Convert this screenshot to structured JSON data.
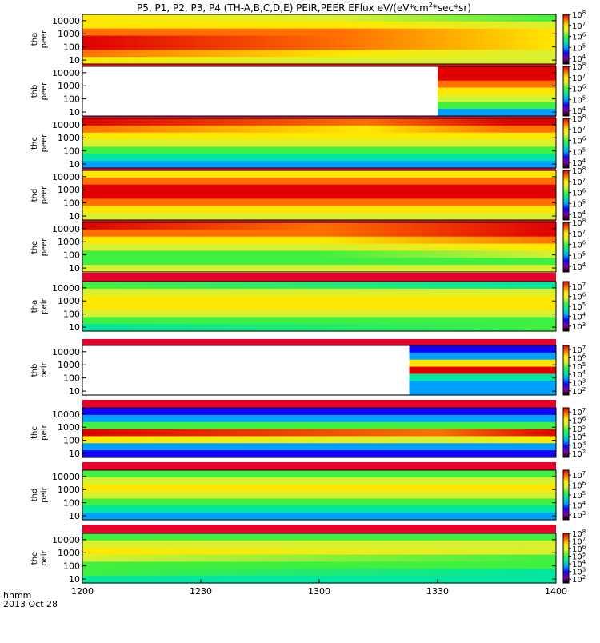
{
  "title": "P5, P1, P2, P3, P4 (TH-A,B,C,D,E) PEIR,PEER EFlux eV/(eV*cm",
  "title_sup": "2",
  "title_end": "*sec*sr)",
  "time_label": "hhmm",
  "date_label": "2013 Oct 28",
  "colors": {
    "palette": [
      "#000000",
      "#8a00a0",
      "#1400ff",
      "#00a0ff",
      "#00e6a0",
      "#40f040",
      "#d8f030",
      "#ffe800",
      "#ff7000",
      "#e00000"
    ],
    "data_gap": "#ffffff",
    "separator": "#e8002a"
  },
  "chart_data": {
    "type": "heatmap",
    "x_ticks": [
      "1200",
      "1230",
      "1300",
      "1330",
      "1400"
    ],
    "x_range_hhmm": [
      "1200",
      "1400"
    ],
    "y_scale": "log",
    "y_tick_labels": [
      "10",
      "100",
      "1000",
      "10000"
    ],
    "panels": [
      {
        "probe": "tha",
        "species": "peer",
        "ylim": [
          5,
          30000
        ],
        "cbar": {
          "min": 3.5,
          "max": 8,
          "ticks": [
            "10",
            "10",
            "10",
            "10",
            "10"
          ],
          "exps": [
            "4",
            "5",
            "6",
            "7",
            "8"
          ]
        },
        "gaps": [],
        "bands": [
          {
            "t": 0.0,
            "lvls": [
              7,
              8,
              9,
              9,
              8,
              7,
              7
            ]
          },
          {
            "t": 0.55,
            "lvls": [
              6,
              7,
              8,
              8,
              8,
              7,
              6
            ]
          },
          {
            "t": 1.0,
            "lvls": [
              6,
              6,
              7,
              7,
              7,
              6,
              5
            ]
          }
        ]
      },
      {
        "probe": "thb",
        "species": "peer",
        "ylim": [
          5,
          30000
        ],
        "cbar": {
          "min": 3.5,
          "max": 8,
          "ticks": [
            "10",
            "10",
            "10",
            "10",
            "10"
          ],
          "exps": [
            "4",
            "5",
            "6",
            "7",
            "8"
          ]
        },
        "gaps": [
          [
            0.0,
            0.75
          ]
        ],
        "bands": [
          {
            "t": 0.75,
            "lvls": [
              3,
              5,
              6,
              7,
              8,
              9,
              9
            ]
          },
          {
            "t": 1.0,
            "lvls": [
              3,
              5,
              6,
              7,
              8,
              9,
              9
            ]
          }
        ]
      },
      {
        "probe": "thc",
        "species": "peer",
        "ylim": [
          5,
          30000
        ],
        "cbar": {
          "min": 3.5,
          "max": 8,
          "ticks": [
            "10",
            "10",
            "10",
            "10",
            "10"
          ],
          "exps": [
            "4",
            "5",
            "6",
            "7",
            "8"
          ]
        },
        "gaps": [],
        "bands": [
          {
            "t": 0.0,
            "lvls": [
              3,
              4,
              5,
              6,
              7,
              8,
              9
            ]
          },
          {
            "t": 0.6,
            "lvls": [
              3,
              4,
              5,
              6,
              7,
              7,
              8
            ]
          },
          {
            "t": 0.9,
            "lvls": [
              3,
              4,
              5,
              6,
              7,
              8,
              9
            ]
          },
          {
            "t": 1.0,
            "lvls": [
              3,
              4,
              5,
              6,
              7,
              8,
              9
            ]
          }
        ]
      },
      {
        "probe": "thd",
        "species": "peer",
        "ylim": [
          5,
          30000
        ],
        "cbar": {
          "min": 3.5,
          "max": 8,
          "ticks": [
            "10",
            "10",
            "10",
            "10",
            "10"
          ],
          "exps": [
            "4",
            "5",
            "6",
            "7",
            "8"
          ]
        },
        "gaps": [],
        "bands": [
          {
            "t": 0.0,
            "lvls": [
              6,
              7,
              8,
              9,
              9,
              8,
              7
            ]
          },
          {
            "t": 1.0,
            "lvls": [
              6,
              7,
              8,
              9,
              9,
              8,
              7
            ]
          }
        ]
      },
      {
        "probe": "the",
        "species": "peer",
        "ylim": [
          5,
          30000
        ],
        "cbar": {
          "min": 3.5,
          "max": 8,
          "ticks": [
            "10",
            "10",
            "10",
            "10",
            "10"
          ],
          "exps": [
            "4",
            "5",
            "6",
            "7",
            "8"
          ]
        },
        "gaps": [],
        "bands": [
          {
            "t": 0.0,
            "lvls": [
              6,
              5,
              5,
              6,
              7,
              8,
              9
            ]
          },
          {
            "t": 0.5,
            "lvls": [
              6,
              5,
              5,
              6,
              7,
              8,
              8
            ]
          },
          {
            "t": 1.0,
            "lvls": [
              6,
              5,
              6,
              7,
              8,
              9,
              9
            ]
          }
        ]
      },
      {
        "probe": "tha",
        "species": "peir",
        "ylim": [
          5,
          30000
        ],
        "cbar": {
          "min": 2.5,
          "max": 7.5,
          "ticks": [
            "10",
            "10",
            "10",
            "10",
            "10"
          ],
          "exps": [
            "3",
            "4",
            "5",
            "6",
            "7"
          ]
        },
        "gaps": [],
        "bands": [
          {
            "t": 0.0,
            "lvls": [
              4,
              5,
              6,
              7,
              7,
              6,
              5
            ]
          },
          {
            "t": 1.0,
            "lvls": [
              5,
              5,
              6,
              7,
              7,
              6,
              4
            ]
          }
        ]
      },
      {
        "probe": "thb",
        "species": "peir",
        "ylim": [
          5,
          30000
        ],
        "cbar": {
          "min": 1.5,
          "max": 7.5,
          "ticks": [
            "10",
            "10",
            "10",
            "10",
            "10",
            "10"
          ],
          "exps": [
            "2",
            "3",
            "4",
            "5",
            "6",
            "7"
          ]
        },
        "gaps": [
          [
            0.0,
            0.69
          ]
        ],
        "bands": [
          {
            "t": 0.69,
            "lvls": [
              3,
              3,
              4,
              9,
              7,
              3,
              2
            ]
          },
          {
            "t": 1.0,
            "lvls": [
              3,
              3,
              4,
              9,
              7,
              3,
              2
            ]
          }
        ]
      },
      {
        "probe": "thc",
        "species": "peir",
        "ylim": [
          5,
          30000
        ],
        "cbar": {
          "min": 1.5,
          "max": 7.5,
          "ticks": [
            "10",
            "10",
            "10",
            "10",
            "10",
            "10"
          ],
          "exps": [
            "2",
            "3",
            "4",
            "5",
            "6",
            "7"
          ]
        },
        "gaps": [],
        "bands": [
          {
            "t": 0.0,
            "lvls": [
              2,
              3,
              7,
              9,
              5,
              3,
              2
            ]
          },
          {
            "t": 0.75,
            "lvls": [
              2,
              3,
              6,
              8,
              5,
              3,
              2
            ]
          },
          {
            "t": 1.0,
            "lvls": [
              2,
              3,
              7,
              9,
              5,
              3,
              2
            ]
          }
        ]
      },
      {
        "probe": "thd",
        "species": "peir",
        "ylim": [
          5,
          30000
        ],
        "cbar": {
          "min": 2.5,
          "max": 7.5,
          "ticks": [
            "10",
            "10",
            "10",
            "10",
            "10"
          ],
          "exps": [
            "3",
            "4",
            "5",
            "6",
            "7"
          ]
        },
        "gaps": [],
        "bands": [
          {
            "t": 0.0,
            "lvls": [
              3,
              4,
              5,
              6,
              7,
              6,
              5
            ]
          },
          {
            "t": 1.0,
            "lvls": [
              3,
              4,
              5,
              6,
              7,
              6,
              5
            ]
          }
        ]
      },
      {
        "probe": "the",
        "species": "peir",
        "ylim": [
          5,
          30000
        ],
        "cbar": {
          "min": 1.5,
          "max": 8,
          "ticks": [
            "10",
            "10",
            "10",
            "10",
            "10",
            "10",
            "10"
          ],
          "exps": [
            "2",
            "3",
            "4",
            "5",
            "6",
            "7",
            "8"
          ]
        },
        "gaps": [],
        "bands": [
          {
            "t": 0.0,
            "lvls": [
              4,
              5,
              5,
              6,
              7,
              6,
              5
            ]
          },
          {
            "t": 1.0,
            "lvls": [
              4,
              4,
              5,
              5,
              6,
              6,
              5
            ]
          }
        ]
      }
    ]
  }
}
